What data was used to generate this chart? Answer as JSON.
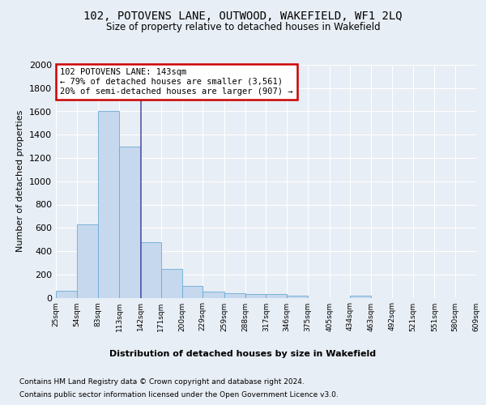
{
  "title1": "102, POTOVENS LANE, OUTWOOD, WAKEFIELD, WF1 2LQ",
  "title2": "Size of property relative to detached houses in Wakefield",
  "xlabel": "Distribution of detached houses by size in Wakefield",
  "ylabel": "Number of detached properties",
  "bar_color": "#c5d8ed",
  "bar_edge_color": "#6aaad4",
  "vline_color": "#5555aa",
  "annotation_box_color": "#cc0000",
  "annotation_text": "102 POTOVENS LANE: 143sqm\n← 79% of detached houses are smaller (3,561)\n20% of semi-detached houses are larger (907) →",
  "vline_x": 143,
  "bins": [
    25,
    54,
    83,
    113,
    142,
    171,
    200,
    229,
    259,
    288,
    317,
    346,
    375,
    405,
    434,
    463,
    492,
    521,
    551,
    580,
    609
  ],
  "values": [
    60,
    630,
    1600,
    1300,
    480,
    250,
    100,
    50,
    40,
    30,
    30,
    20,
    0,
    0,
    20,
    0,
    0,
    0,
    0,
    0
  ],
  "tick_labels": [
    "25sqm",
    "54sqm",
    "83sqm",
    "113sqm",
    "142sqm",
    "171sqm",
    "200sqm",
    "229sqm",
    "259sqm",
    "288sqm",
    "317sqm",
    "346sqm",
    "375sqm",
    "405sqm",
    "434sqm",
    "463sqm",
    "492sqm",
    "521sqm",
    "551sqm",
    "580sqm",
    "609sqm"
  ],
  "ylim": [
    0,
    2000
  ],
  "yticks": [
    0,
    200,
    400,
    600,
    800,
    1000,
    1200,
    1400,
    1600,
    1800,
    2000
  ],
  "footnote1": "Contains HM Land Registry data © Crown copyright and database right 2024.",
  "footnote2": "Contains public sector information licensed under the Open Government Licence v3.0.",
  "bg_color": "#e8eef5",
  "plot_bg_color": "#e8eef5"
}
